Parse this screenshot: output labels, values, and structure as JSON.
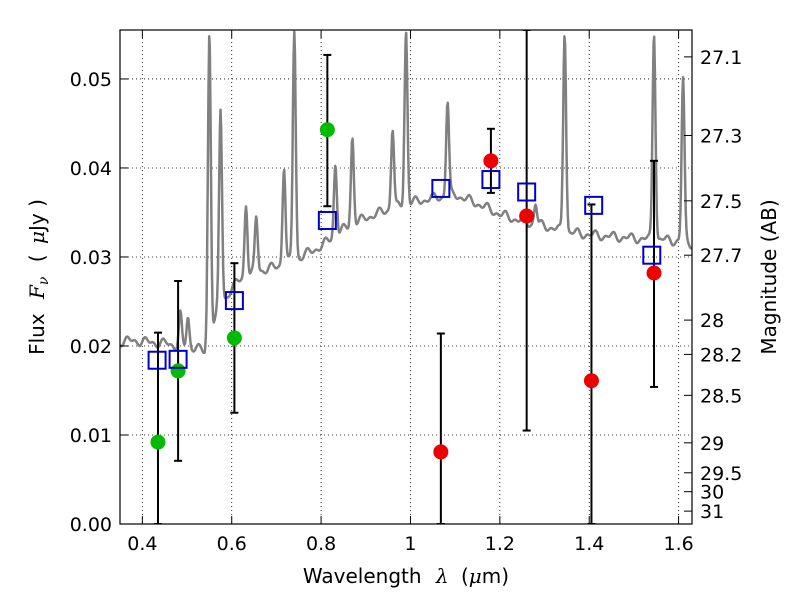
{
  "chart_data": {
    "type": "scatter",
    "xlabel": "Wavelength",
    "xlabel_symbol": "λ",
    "xlabel_unit_open": "(",
    "xlabel_unit_mu": "μ",
    "xlabel_unit_rest": "m)",
    "ylabel": "Flux",
    "ylabel_symbol": "F",
    "ylabel_subscript": "ν",
    "ylabel_unit_open": "(",
    "ylabel_unit_mu": "μ",
    "ylabel_unit_rest": "Jy )",
    "y2label": "Magnitude (AB)",
    "xlim": [
      0.35,
      1.63
    ],
    "ylim": [
      0.0,
      0.0555
    ],
    "grid": true,
    "x_ticks": [
      0.4,
      0.6,
      0.8,
      1.0,
      1.2,
      1.4,
      1.6
    ],
    "x_tick_labels": [
      "0.4",
      "0.6",
      "0.8",
      "1",
      "1.2",
      "1.4",
      "1.6"
    ],
    "y_ticks": [
      0.0,
      0.01,
      0.02,
      0.03,
      0.04,
      0.05
    ],
    "y_tick_labels": [
      "0.00",
      "0.01",
      "0.02",
      "0.03",
      "0.04",
      "0.05"
    ],
    "mag_ticks": [
      27.1,
      27.3,
      27.5,
      27.7,
      28,
      28.2,
      28.5,
      29,
      29.5,
      30,
      31
    ],
    "mag_tick_labels": [
      "27.1",
      "27.3",
      "27.5",
      "27.7",
      "28",
      "28.2",
      "28.5",
      "29",
      "29.5",
      "30",
      "31"
    ],
    "colors": {
      "detected": "#00bb00",
      "nondetected": "#ee0000",
      "model": "#0000cc",
      "spectrum": "#808080",
      "errorbar": "#000000"
    },
    "series": [
      {
        "name": "observed flux (green)",
        "marker": "circle",
        "color_key": "detected",
        "points": [
          {
            "x": 0.435,
            "y": 0.0092,
            "ylo": 0.0,
            "yhi": 0.0215
          },
          {
            "x": 0.48,
            "y": 0.0172,
            "ylo": 0.0071,
            "yhi": 0.0273
          },
          {
            "x": 0.606,
            "y": 0.0209,
            "ylo": 0.0125,
            "yhi": 0.0293
          },
          {
            "x": 0.814,
            "y": 0.0443,
            "ylo": 0.0357,
            "yhi": 0.0527
          }
        ]
      },
      {
        "name": "observed flux (red)",
        "marker": "circle",
        "color_key": "nondetected",
        "points": [
          {
            "x": 1.068,
            "y": 0.0081,
            "ylo": 0.0,
            "yhi": 0.0214
          },
          {
            "x": 1.18,
            "y": 0.0408,
            "ylo": 0.0372,
            "yhi": 0.0444
          },
          {
            "x": 1.26,
            "y": 0.0346,
            "ylo": 0.0105,
            "yhi": 0.0555
          },
          {
            "x": 1.405,
            "y": 0.0161,
            "ylo": 0.0,
            "yhi": 0.0359
          },
          {
            "x": 1.545,
            "y": 0.0282,
            "ylo": 0.0154,
            "yhi": 0.0408
          }
        ]
      },
      {
        "name": "model photometry",
        "marker": "square",
        "color_key": "model",
        "points": [
          {
            "x": 0.433,
            "y": 0.0184
          },
          {
            "x": 0.48,
            "y": 0.0185
          },
          {
            "x": 0.606,
            "y": 0.0251
          },
          {
            "x": 0.814,
            "y": 0.0341
          },
          {
            "x": 1.068,
            "y": 0.0377
          },
          {
            "x": 1.18,
            "y": 0.0387
          },
          {
            "x": 1.26,
            "y": 0.0373
          },
          {
            "x": 1.41,
            "y": 0.0358
          },
          {
            "x": 1.54,
            "y": 0.0302
          }
        ]
      }
    ],
    "spectrum": {
      "name": "model spectrum",
      "color_key": "spectrum",
      "continuum": [
        [
          0.35,
          0.0205
        ],
        [
          0.38,
          0.0206
        ],
        [
          0.42,
          0.0204
        ],
        [
          0.45,
          0.0203
        ],
        [
          0.48,
          0.02
        ],
        [
          0.5,
          0.0198
        ],
        [
          0.52,
          0.0199
        ],
        [
          0.54,
          0.0192
        ],
        [
          0.55,
          0.021
        ],
        [
          0.57,
          0.024
        ],
        [
          0.6,
          0.0265
        ],
        [
          0.62,
          0.0275
        ],
        [
          0.65,
          0.0283
        ],
        [
          0.7,
          0.0289
        ],
        [
          0.75,
          0.0299
        ],
        [
          0.8,
          0.0312
        ],
        [
          0.85,
          0.0331
        ],
        [
          0.9,
          0.0344
        ],
        [
          0.95,
          0.0353
        ],
        [
          1.0,
          0.0361
        ],
        [
          1.05,
          0.0366
        ],
        [
          1.1,
          0.037
        ],
        [
          1.15,
          0.036
        ],
        [
          1.2,
          0.0348
        ],
        [
          1.25,
          0.034
        ],
        [
          1.3,
          0.0335
        ],
        [
          1.35,
          0.0328
        ],
        [
          1.4,
          0.0325
        ],
        [
          1.45,
          0.0323
        ],
        [
          1.5,
          0.0321
        ],
        [
          1.55,
          0.032
        ],
        [
          1.6,
          0.0318
        ],
        [
          1.63,
          0.0315
        ]
      ],
      "lines": [
        {
          "x": 0.485,
          "peak": 0.0235
        },
        {
          "x": 0.502,
          "peak": 0.0232
        },
        {
          "x": 0.55,
          "peak": 0.0555
        },
        {
          "x": 0.575,
          "peak": 0.0465
        },
        {
          "x": 0.632,
          "peak": 0.036
        },
        {
          "x": 0.655,
          "peak": 0.0345
        },
        {
          "x": 0.717,
          "peak": 0.0403
        },
        {
          "x": 0.74,
          "peak": 0.0555
        },
        {
          "x": 0.832,
          "peak": 0.0405
        },
        {
          "x": 0.87,
          "peak": 0.0435
        },
        {
          "x": 0.96,
          "peak": 0.0445
        },
        {
          "x": 0.99,
          "peak": 0.0555
        },
        {
          "x": 1.083,
          "peak": 0.0475
        },
        {
          "x": 1.28,
          "peak": 0.036
        },
        {
          "x": 1.345,
          "peak": 0.0555
        },
        {
          "x": 1.545,
          "peak": 0.0555
        },
        {
          "x": 1.61,
          "peak": 0.05
        }
      ],
      "wide_bump": [
        [
          0.5,
          0.0198
        ],
        [
          0.52,
          0.0206
        ],
        [
          0.58,
          0.0252
        ],
        [
          0.7,
          0.0292
        ],
        [
          0.9,
          0.0348
        ],
        [
          1.0,
          0.0368
        ]
      ]
    }
  }
}
